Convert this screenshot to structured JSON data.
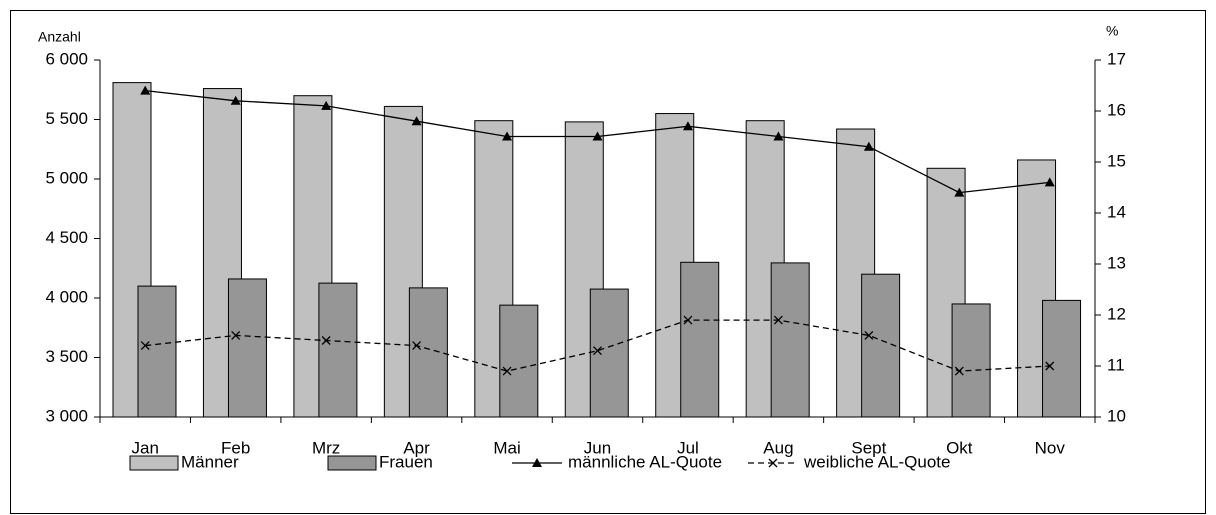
{
  "chart_data": {
    "type": "bar-line",
    "y_label": "Anzahl",
    "y2_label": "%",
    "categories": [
      "Jan",
      "Feb",
      "Mrz",
      "Apr",
      "Mai",
      "Jun",
      "Jul",
      "Aug",
      "Sept",
      "Okt",
      "Nov"
    ],
    "series": [
      {
        "name": "Männer",
        "type": "bar",
        "color": "#c0c0c0",
        "values": [
          5810,
          5760,
          5700,
          5610,
          5490,
          5480,
          5550,
          5490,
          5420,
          5090,
          5160
        ]
      },
      {
        "name": "Frauen",
        "type": "bar",
        "color": "#969696",
        "values": [
          4100,
          4160,
          4125,
          4085,
          3940,
          4075,
          4300,
          4295,
          4200,
          3950,
          3980
        ]
      },
      {
        "name": "männliche AL-Quote",
        "type": "line",
        "axis": "y2",
        "color": "#000000",
        "marker": "triangle",
        "dashed": false,
        "values": [
          16.4,
          16.2,
          16.1,
          15.8,
          15.5,
          15.5,
          15.7,
          15.5,
          15.3,
          14.4,
          14.6
        ]
      },
      {
        "name": "weibliche AL-Quote",
        "type": "line",
        "axis": "y2",
        "color": "#000000",
        "marker": "x",
        "dashed": true,
        "values": [
          11.4,
          11.6,
          11.5,
          11.4,
          10.9,
          11.3,
          11.9,
          11.9,
          11.6,
          10.9,
          11.0
        ]
      }
    ],
    "ylim": [
      3000,
      6000
    ],
    "yticks": [
      {
        "value": 3000,
        "label": "3 000"
      },
      {
        "value": 3500,
        "label": "3 500"
      },
      {
        "value": 4000,
        "label": "4 000"
      },
      {
        "value": 4500,
        "label": "4 500"
      },
      {
        "value": 5000,
        "label": "5 000"
      },
      {
        "value": 5500,
        "label": "5 500"
      },
      {
        "value": 6000,
        "label": "6 000"
      }
    ],
    "y2lim": [
      10,
      17
    ],
    "y2ticks": [
      10,
      11,
      12,
      13,
      14,
      15,
      16,
      17
    ],
    "grid": false,
    "legend": "bottom"
  }
}
